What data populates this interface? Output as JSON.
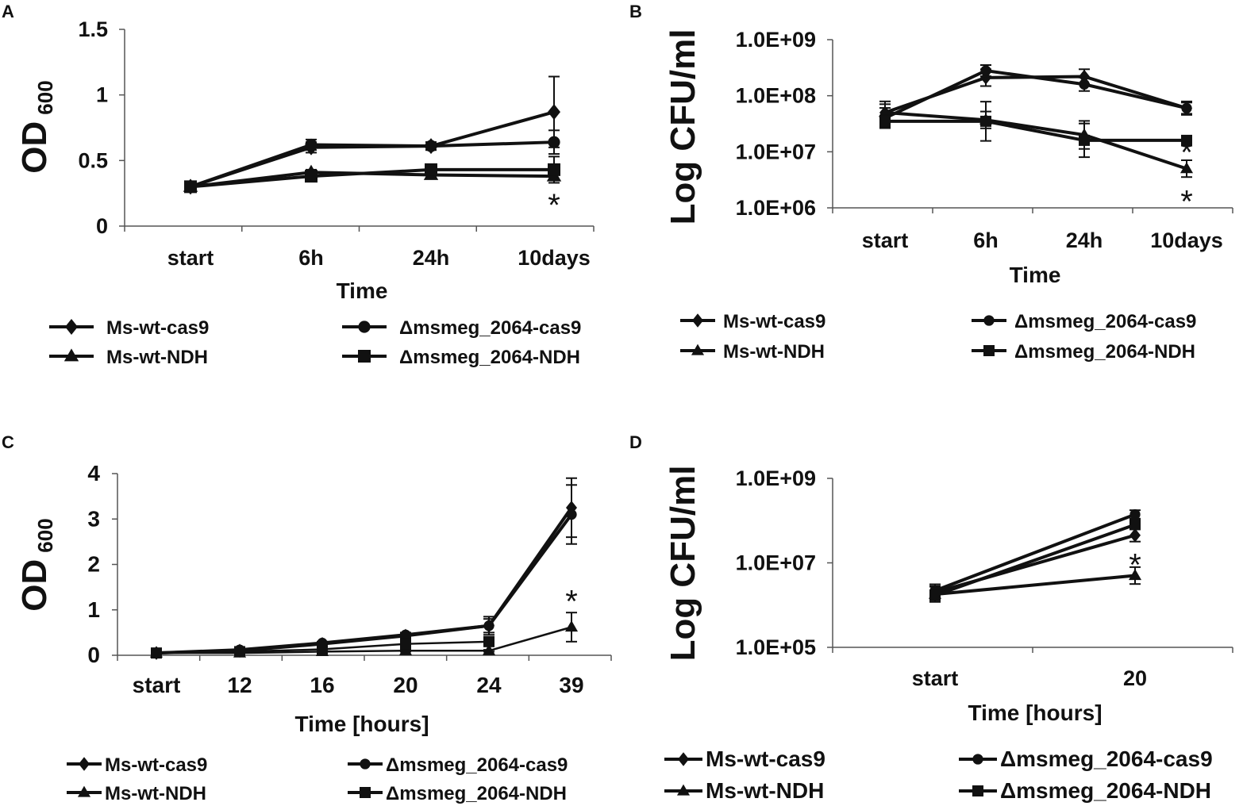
{
  "chart_data": [
    {
      "panel": "A",
      "type": "line",
      "xlabel": "Time",
      "ylabel": "OD",
      "ylabel_sub": "600",
      "categories": [
        "start",
        "6h",
        "24h",
        "10days"
      ],
      "yticks": [
        "0",
        "0.5",
        "1",
        "1.5"
      ],
      "ylim": [
        0,
        1.5
      ],
      "scale": "linear",
      "series": [
        {
          "name": "Ms-wt-cas9",
          "marker": "diamond",
          "values": [
            0.3,
            0.6,
            0.61,
            0.87
          ],
          "errors": [
            0.01,
            0.04,
            0.03,
            0.27
          ]
        },
        {
          "name": "Δmsmeg_2064-cas9",
          "marker": "circle",
          "values": [
            0.3,
            0.62,
            0.61,
            0.64
          ],
          "errors": [
            0.01,
            0.04,
            0.03,
            0.09
          ]
        },
        {
          "name": "Ms-wt-NDH",
          "marker": "triangle",
          "values": [
            0.3,
            0.41,
            0.39,
            0.38
          ],
          "errors": [
            0.01,
            0.02,
            0.02,
            0.03
          ]
        },
        {
          "name": "Δmsmeg_2064-NDH",
          "marker": "square",
          "values": [
            0.3,
            0.38,
            0.43,
            0.43
          ],
          "errors": [
            0.01,
            0.02,
            0.02,
            0.1
          ]
        }
      ],
      "annotations": [
        {
          "text": "*",
          "category": "10days",
          "y": 0.2
        }
      ]
    },
    {
      "panel": "B",
      "type": "line",
      "xlabel": "Time",
      "ylabel": "Log CFU/ml",
      "categories": [
        "start",
        "6h",
        "24h",
        "10days"
      ],
      "yticks": [
        "1.0E+06",
        "1.0E+07",
        "1.0E+08",
        "1.0E+09"
      ],
      "ylim": [
        1000000,
        1000000000
      ],
      "scale": "log",
      "series": [
        {
          "name": "Ms-wt-cas9",
          "marker": "diamond",
          "values": [
            50000000,
            210000000,
            220000000,
            60000000
          ],
          "errors": [
            0.2,
            0.15,
            0.13,
            0.12
          ]
        },
        {
          "name": "Δmsmeg_2064-cas9",
          "marker": "circle",
          "values": [
            40000000,
            280000000,
            160000000,
            60000000
          ],
          "errors": [
            0.18,
            0.1,
            0.12,
            0.1
          ]
        },
        {
          "name": "Ms-wt-NDH",
          "marker": "triangle",
          "values": [
            50000000,
            37000000,
            20000000,
            5000000
          ],
          "errors": [
            0.15,
            0.15,
            0.25,
            0.15
          ]
        },
        {
          "name": "Δmsmeg_2064-NDH",
          "marker": "square",
          "values": [
            35000000,
            35000000,
            16000000,
            16000000
          ],
          "errors": [
            0.1,
            0.35,
            0.3,
            0.06
          ]
        }
      ],
      "annotations": [
        {
          "text": "*",
          "category": "10days",
          "y": 12000000
        },
        {
          "text": "*",
          "category": "10days",
          "y": 1600000
        }
      ]
    },
    {
      "panel": "C",
      "type": "line",
      "xlabel": "Time [hours]",
      "ylabel": "OD",
      "ylabel_sub": "600",
      "categories": [
        "start",
        "12",
        "16",
        "20",
        "24",
        "39"
      ],
      "yticks": [
        "0",
        "1",
        "2",
        "3",
        "4"
      ],
      "ylim": [
        0,
        4
      ],
      "scale": "linear",
      "series": [
        {
          "name": "Ms-wt-cas9",
          "marker": "diamond",
          "values": [
            0.05,
            0.1,
            0.25,
            0.43,
            0.65,
            3.25
          ],
          "errors": [
            0.01,
            0.02,
            0.03,
            0.05,
            0.2,
            0.65
          ]
        },
        {
          "name": "Δmsmeg_2064-cas9",
          "marker": "circle",
          "values": [
            0.05,
            0.12,
            0.27,
            0.45,
            0.65,
            3.1
          ],
          "errors": [
            0.01,
            0.02,
            0.03,
            0.05,
            0.15,
            0.65
          ]
        },
        {
          "name": "Ms-wt-NDH",
          "marker": "triangle",
          "values": [
            0.05,
            0.05,
            0.08,
            0.1,
            0.1,
            0.62
          ],
          "errors": [
            0.01,
            0.01,
            0.01,
            0.02,
            0.02,
            0.32
          ]
        },
        {
          "name": "Δmsmeg_2064-NDH",
          "marker": "square",
          "values": [
            0.05,
            0.08,
            0.13,
            0.25,
            0.3,
            null
          ],
          "errors": [
            0.01,
            0.01,
            0.02,
            0.03,
            0.05,
            null
          ]
        }
      ],
      "annotations": [
        {
          "text": "*",
          "category": "39",
          "y": 1.3
        }
      ]
    },
    {
      "panel": "D",
      "type": "line",
      "xlabel": "Time [hours]",
      "ylabel": "Log CFU/ml",
      "categories": [
        "start",
        "20"
      ],
      "yticks": [
        "1.0E+05",
        "1.0E+07",
        "1.0E+09"
      ],
      "ylim": [
        100000,
        1000000000
      ],
      "scale": "log",
      "series": [
        {
          "name": "Ms-wt-cas9",
          "marker": "diamond",
          "values": [
            2000000,
            45000000
          ],
          "errors": [
            0.15,
            0.15
          ]
        },
        {
          "name": "Δmsmeg_2064-cas9",
          "marker": "circle",
          "values": [
            2200000,
            140000000
          ],
          "errors": [
            0.15,
            0.1
          ]
        },
        {
          "name": "Ms-wt-NDH",
          "marker": "triangle",
          "values": [
            1800000,
            5000000
          ],
          "errors": [
            0.18,
            0.2
          ]
        },
        {
          "name": "Δmsmeg_2064-NDH",
          "marker": "square",
          "values": [
            1700000,
            80000000
          ],
          "errors": [
            0.12,
            0.1
          ]
        }
      ],
      "annotations": [
        {
          "text": "*",
          "category": "20",
          "y": 12000000
        }
      ]
    }
  ]
}
